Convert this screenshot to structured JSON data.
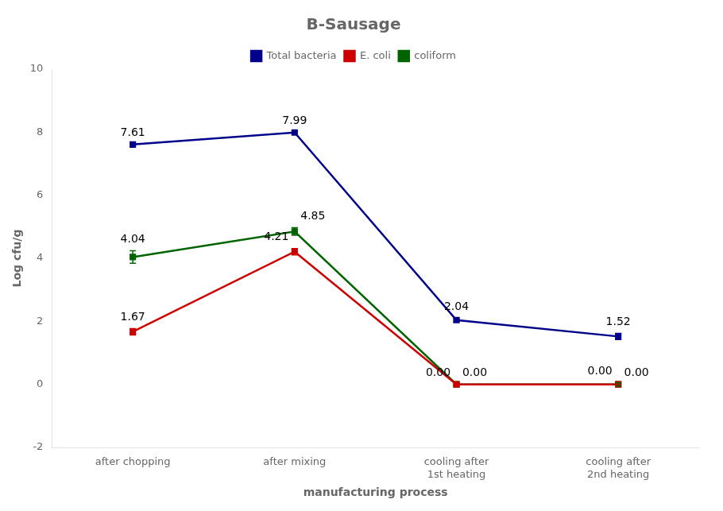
{
  "chart_data": {
    "type": "line",
    "title": "B-Sausage",
    "xlabel": "manufacturing process",
    "ylabel": "Log cfu/g",
    "categories": [
      "after chopping",
      "after mixing",
      "cooling after\n1st heating",
      "cooling after\n2nd heating"
    ],
    "series": [
      {
        "name": "Total bacteria",
        "color": "#00008B",
        "values": [
          7.61,
          7.99,
          2.04,
          1.52
        ],
        "errors": [
          0.0,
          0.0,
          0.05,
          0.1
        ],
        "value_labels": [
          "7.61",
          "7.99",
          "2.04",
          "1.52"
        ]
      },
      {
        "name": "E. coli",
        "color": "#CC0000",
        "values": [
          1.67,
          4.21,
          0.0,
          0.0
        ],
        "errors": [
          0.1,
          0.1,
          0.0,
          0.0
        ],
        "value_labels": [
          "1.67",
          "4.21",
          "0.00",
          "0.00"
        ]
      },
      {
        "name": "coliform",
        "color": "#006400",
        "values": [
          4.04,
          4.85,
          0.0,
          0.0
        ],
        "errors": [
          0.2,
          0.12,
          0.0,
          0.05
        ],
        "value_labels": [
          "4.04",
          "4.85",
          "0.00",
          "0.00"
        ]
      }
    ],
    "ylim": [
      -2,
      10
    ],
    "yticks": [
      -2,
      0,
      2,
      4,
      6,
      8,
      10
    ],
    "grid": false,
    "legend": "top",
    "marker": "square",
    "data_labels": true
  }
}
